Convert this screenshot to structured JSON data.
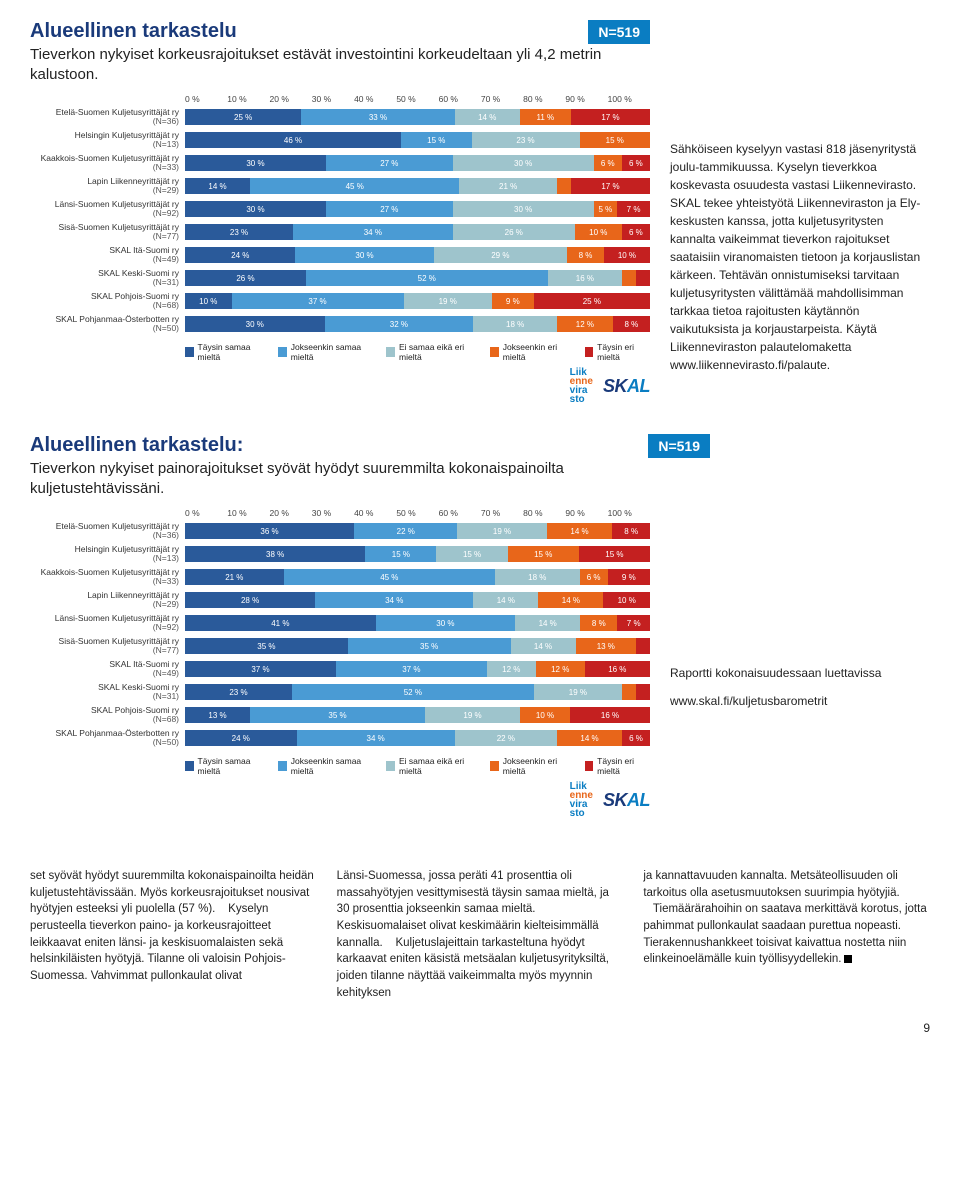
{
  "chart1": {
    "badge": "N=519",
    "title": "Alueellinen tarkastelu",
    "subtitle": "Tieverkon nykyiset korkeusrajoitukset estävät investointini korkeudeltaan yli 4,2 metrin kalustoon.",
    "axis_ticks": [
      "0 %",
      "10 %",
      "20 %",
      "30 %",
      "40 %",
      "50 %",
      "60 %",
      "70 %",
      "80 %",
      "90 %",
      "100 %"
    ],
    "colors": [
      "#2a5a9a",
      "#4a9bd4",
      "#9ec4cc",
      "#e8661a",
      "#c42020"
    ],
    "legend": [
      "Täysin samaa mieltä",
      "Jokseenkin samaa mieltä",
      "Ei samaa eikä eri mieltä",
      "Jokseenkin eri mieltä",
      "Täysin eri mieltä"
    ],
    "rows": [
      {
        "label": "Etelä-Suomen Kuljetusyrittäjät ry",
        "n": "(N=36)",
        "vals": [
          25,
          33,
          14,
          11,
          17
        ]
      },
      {
        "label": "Helsingin Kuljetusyrittäjät ry",
        "n": "(N=13)",
        "vals": [
          46,
          15,
          23,
          15,
          0
        ]
      },
      {
        "label": "Kaakkois-Suomen Kuljetusyrittäjät ry",
        "n": "(N=33)",
        "vals": [
          30,
          27,
          30,
          6,
          6
        ]
      },
      {
        "label": "Lapin Liikenneyrittäjät ry",
        "n": "(N=29)",
        "vals": [
          14,
          45,
          21,
          3,
          17
        ]
      },
      {
        "label": "Länsi-Suomen Kuljetusyrittäjät ry",
        "n": "(N=92)",
        "vals": [
          30,
          27,
          30,
          5,
          7
        ]
      },
      {
        "label": "Sisä-Suomen Kuljetusyrittäjät ry",
        "n": "(N=77)",
        "vals": [
          23,
          34,
          26,
          10,
          6
        ]
      },
      {
        "label": "SKAL Itä-Suomi ry",
        "n": "(N=49)",
        "vals": [
          24,
          30,
          29,
          8,
          10
        ]
      },
      {
        "label": "SKAL Keski-Suomi ry",
        "n": "(N=31)",
        "vals": [
          26,
          52,
          16,
          3,
          3
        ]
      },
      {
        "label": "SKAL Pohjois-Suomi ry",
        "n": "(N=68)",
        "vals": [
          10,
          37,
          19,
          9,
          25
        ]
      },
      {
        "label": "SKAL Pohjanmaa-Österbotten ry",
        "n": "(N=50)",
        "vals": [
          30,
          32,
          18,
          12,
          8
        ]
      }
    ]
  },
  "chart2": {
    "badge": "N=519",
    "title": "Alueellinen tarkastelu:",
    "subtitle": "Tieverkon nykyiset painorajoitukset syövät hyödyt suuremmilta kokonaispainoilta kuljetustehtävissäni.",
    "axis_ticks": [
      "0 %",
      "10 %",
      "20 %",
      "30 %",
      "40 %",
      "50 %",
      "60 %",
      "70 %",
      "80 %",
      "90 %",
      "100 %"
    ],
    "colors": [
      "#2a5a9a",
      "#4a9bd4",
      "#9ec4cc",
      "#e8661a",
      "#c42020"
    ],
    "legend": [
      "Täysin samaa mieltä",
      "Jokseenkin samaa mieltä",
      "Ei samaa eikä eri mieltä",
      "Jokseenkin eri mieltä",
      "Täysin eri mieltä"
    ],
    "rows": [
      {
        "label": "Etelä-Suomen Kuljetusyrittäjät ry",
        "n": "(N=36)",
        "vals": [
          36,
          22,
          19,
          14,
          8
        ]
      },
      {
        "label": "Helsingin Kuljetusyrittäjät ry",
        "n": "(N=13)",
        "vals": [
          38,
          15,
          15,
          15,
          15
        ]
      },
      {
        "label": "Kaakkois-Suomen Kuljetusyrittäjät ry",
        "n": "(N=33)",
        "vals": [
          21,
          45,
          18,
          6,
          9
        ]
      },
      {
        "label": "Lapin Liikenneyrittäjät ry",
        "n": "(N=29)",
        "vals": [
          28,
          34,
          14,
          14,
          10
        ]
      },
      {
        "label": "Länsi-Suomen Kuljetusyrittäjät ry",
        "n": "(N=92)",
        "vals": [
          41,
          30,
          14,
          8,
          7
        ]
      },
      {
        "label": "Sisä-Suomen Kuljetusyrittäjät ry",
        "n": "(N=77)",
        "vals": [
          35,
          35,
          14,
          13,
          3
        ]
      },
      {
        "label": "SKAL Itä-Suomi ry",
        "n": "(N=49)",
        "vals": [
          37,
          37,
          12,
          12,
          16
        ]
      },
      {
        "label": "SKAL Keski-Suomi ry",
        "n": "(N=31)",
        "vals": [
          23,
          52,
          19,
          3,
          3
        ]
      },
      {
        "label": "SKAL Pohjois-Suomi ry",
        "n": "(N=68)",
        "vals": [
          13,
          35,
          19,
          10,
          16
        ]
      },
      {
        "label": "SKAL Pohjanmaa-Österbotten ry",
        "n": "(N=50)",
        "vals": [
          24,
          34,
          22,
          14,
          6
        ]
      }
    ]
  },
  "sidebar": {
    "p1": "Sähköiseen kyselyyn vastasi 818 jäsenyritystä joulu-tammikuussa. Kyselyn tieverkkoa koskevasta osuudesta vastasi Liikennevirasto. SKAL tekee yhteistyötä Liikenneviraston ja Ely-keskusten kanssa, jotta kuljetusyritysten kannalta vaikeimmat tieverkon rajoitukset saataisiin viranomaisten tietoon ja korjauslistan kärkeen. Tehtävän onnistumiseksi tarvitaan kuljetusyritysten välittämää mahdollisimman tarkkaa tietoa rajoitusten käytännön vaikutuksista ja korjaustarpeista. Käytä Liikenneviraston palautelomaketta www.liikennevirasto.fi/palaute.",
    "p2": "Raportti kokonaisuudessaan luettavissa",
    "p3": "www.skal.fi/kuljetusbarometrit"
  },
  "bottom": {
    "c1": "set syövät hyödyt suuremmilta kokonaispainoilta heidän kuljetustehtävissään. Myös korkeusrajoitukset nousivat hyötyjen esteeksi yli puolella (57 %).\n   Kyselyn perusteella tieverkon paino- ja korkeusrajoitteet leikkaavat eniten länsi- ja keskisuomalaisten sekä helsinkiläisten hyötyjä. Tilanne oli valoisin Pohjois-Suomessa. Vahvimmat pullonkaulat olivat",
    "c2": "Länsi-Suomessa, jossa peräti 41 prosenttia oli massahyötyjen vesittymisestä täysin samaa mieltä, ja 30 prosenttia jokseenkin samaa mieltä. Keskisuomalaiset olivat keskimäärin kielteisimmällä kannalla.\n   Kuljetuslajeittain tarkasteltuna hyödyt karkaavat eniten käsistä metsäalan kuljetusyrityksiltä, joiden tilanne näyttää vaikeimmalta myös myynnin kehityksen",
    "c3": "ja kannattavuuden kannalta. Metsäteollisuuden oli tarkoitus olla asetusmuutoksen suurimpia hyötyjiä.\n   Tiemäärärahoihin on saatava merkittävä korotus, jotta pahimmat pullonkaulat saadaan purettua nopeasti. Tierakennushankkeet toisivat kaivattua nostetta niin elinkeinoelämälle kuin työllisyydellekin."
  },
  "page_number": "9"
}
